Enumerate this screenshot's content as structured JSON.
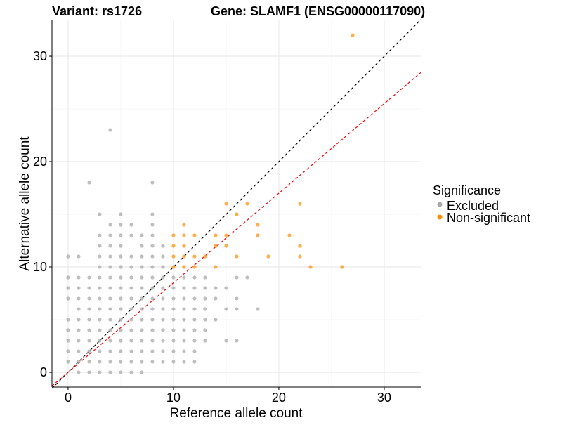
{
  "chart_data": {
    "type": "scatter",
    "title_left": "Variant: rs1726",
    "title_right": "Gene: SLAMF1 (ENSG00000117090)",
    "xlabel": "Reference allele count",
    "ylabel": "Alternative allele count",
    "xlim": [
      -1.53,
      33.47
    ],
    "ylim": [
      -1.4,
      33.47
    ],
    "xticks": [
      0,
      10,
      20,
      30
    ],
    "yticks": [
      0,
      10,
      20,
      30
    ],
    "grid": true,
    "legend": {
      "title": "Significance",
      "placement": "right",
      "entries": [
        {
          "label": "Excluded",
          "color": "#a9a9a9"
        },
        {
          "label": "Non-significant",
          "color": "#ff8c00"
        }
      ]
    },
    "reference_lines": [
      {
        "name": "identity",
        "slope": 1,
        "intercept": 0,
        "color": "#000000",
        "style": "dashed"
      },
      {
        "name": "fit",
        "slope": 0.85,
        "intercept": 0,
        "color": "#ff0000",
        "style": "dashed"
      }
    ],
    "series": [
      {
        "name": "Excluded",
        "color": "#a9a9a9",
        "rows": [
          {
            "y": 23,
            "x": [
              4
            ]
          },
          {
            "y": 18,
            "x": [
              2,
              8
            ]
          },
          {
            "y": 15,
            "x": [
              3,
              5,
              8
            ]
          },
          {
            "y": 14,
            "x": [
              4,
              5,
              6,
              8
            ]
          },
          {
            "y": 13,
            "x": [
              3,
              4,
              5,
              6,
              7,
              8
            ]
          },
          {
            "y": 12,
            "x": [
              3,
              4,
              5,
              7,
              8,
              9
            ]
          },
          {
            "y": 11,
            "x": [
              0,
              1,
              3,
              4,
              5,
              6,
              7,
              8,
              9
            ]
          },
          {
            "y": 10,
            "x": [
              3,
              4,
              5,
              6,
              7,
              8,
              9
            ]
          },
          {
            "y": 9,
            "x": [
              0,
              1,
              2,
              3,
              4,
              5,
              6,
              7,
              8,
              9,
              10,
              11,
              12,
              13,
              16,
              17
            ]
          },
          {
            "y": 8,
            "x": [
              0,
              1,
              2,
              3,
              4,
              5,
              6,
              7,
              8,
              9,
              10,
              11,
              12,
              13,
              14,
              15
            ]
          },
          {
            "y": 7,
            "x": [
              0,
              1,
              2,
              3,
              4,
              5,
              6,
              7,
              8,
              9,
              10,
              11,
              12,
              13,
              14,
              16
            ]
          },
          {
            "y": 6,
            "x": [
              1,
              2,
              3,
              4,
              5,
              6,
              7,
              8,
              9,
              10,
              11,
              12,
              13,
              15,
              16,
              18
            ]
          },
          {
            "y": 5,
            "x": [
              0,
              1,
              2,
              3,
              4,
              5,
              6,
              7,
              8,
              9,
              10,
              11,
              12,
              13,
              14
            ]
          },
          {
            "y": 4,
            "x": [
              0,
              1,
              2,
              3,
              4,
              5,
              6,
              7,
              8,
              9,
              10,
              11,
              12,
              13
            ]
          },
          {
            "y": 3,
            "x": [
              0,
              1,
              2,
              3,
              4,
              5,
              6,
              7,
              8,
              9,
              10,
              11,
              12,
              13,
              15,
              16
            ]
          },
          {
            "y": 2,
            "x": [
              0,
              1,
              2,
              3,
              4,
              5,
              6,
              7,
              8,
              9,
              10,
              11,
              12
            ]
          },
          {
            "y": 1,
            "x": [
              0,
              1,
              2,
              3,
              4,
              5,
              6,
              7,
              8,
              9,
              10,
              11,
              12
            ]
          },
          {
            "y": 0,
            "x": [
              1,
              2,
              3,
              4,
              5,
              6,
              7
            ]
          }
        ]
      },
      {
        "name": "Non-significant",
        "color": "#ff8c00",
        "rows": [
          {
            "y": 32,
            "x": [
              27
            ]
          },
          {
            "y": 16,
            "x": [
              15,
              17,
              22
            ]
          },
          {
            "y": 15,
            "x": [
              16
            ]
          },
          {
            "y": 14,
            "x": [
              11,
              18
            ]
          },
          {
            "y": 13,
            "x": [
              10,
              11,
              12,
              14,
              15,
              18,
              21
            ]
          },
          {
            "y": 12,
            "x": [
              10,
              11,
              14,
              15,
              22
            ]
          },
          {
            "y": 11,
            "x": [
              10,
              11,
              12,
              13,
              16,
              19,
              22
            ]
          },
          {
            "y": 10,
            "x": [
              10,
              11,
              12,
              14,
              23,
              26
            ]
          }
        ]
      }
    ]
  }
}
